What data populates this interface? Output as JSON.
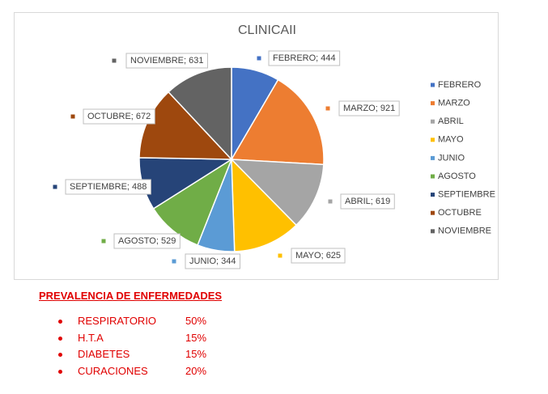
{
  "chart_data": {
    "type": "pie",
    "title": "CLINICAII",
    "categories": [
      "FEBRERO",
      "MARZO",
      "ABRIL",
      "MAYO",
      "JUNIO",
      "AGOSTO",
      "SEPTIEMBRE",
      "OCTUBRE",
      "NOVIEMBRE"
    ],
    "values": [
      444,
      921,
      619,
      625,
      344,
      529,
      488,
      672,
      631
    ],
    "value_labels": [
      "FEBRERO; 444",
      "MARZO; 921",
      "ABRIL; 619",
      "MAYO; 625",
      "JUNIO; 344",
      "AGOSTO; 529",
      "SEPTIEMBRE; 488",
      "OCTUBRE; 672",
      "NOVIEMBRE; 631"
    ],
    "colors": [
      "#4472c4",
      "#ed7d31",
      "#a5a5a5",
      "#ffc000",
      "#5b9bd5",
      "#70ad47",
      "#264478",
      "#9e480e",
      "#636363"
    ],
    "legend": "right"
  },
  "document": {
    "heading": "PREVALENCIA DE ENFERMEDADES",
    "items": [
      [
        "RESPIRATORIO",
        "50%"
      ],
      [
        "H.T.A",
        "15%"
      ],
      [
        "DIABETES",
        "15%"
      ],
      [
        "CURACIONES",
        "20%"
      ]
    ]
  }
}
